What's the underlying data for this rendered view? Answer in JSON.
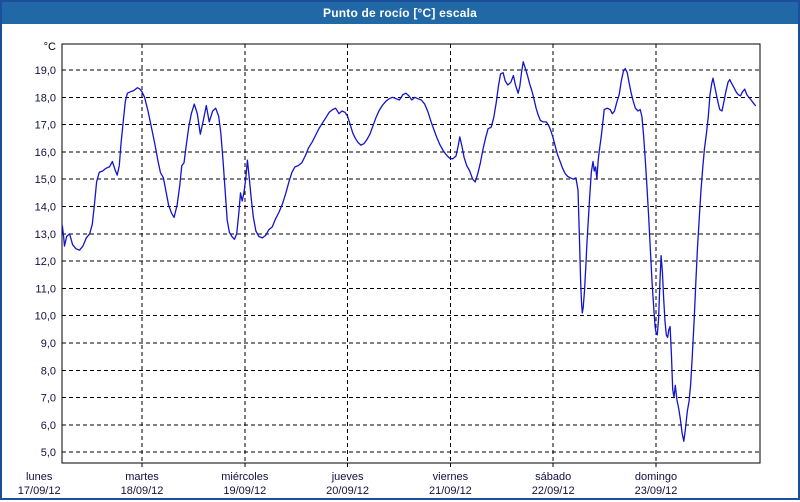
{
  "window": {
    "title": "Punto de rocío [°C] escala"
  },
  "colors": {
    "titlebar_bg": "#2069a6",
    "frame": "#1b4e9b",
    "series_line": "#1414cc",
    "grid": "#000000",
    "axis_text": "#10103f"
  },
  "axes": {
    "y_unit": "°C",
    "y_tick_labels": [
      "19,0",
      "18,0",
      "17,0",
      "16,0",
      "15,0",
      "14,0",
      "13,0",
      "12,0",
      "11,0",
      "10,0",
      "9,0",
      "8,0",
      "7,0",
      "6,0",
      "5,0"
    ],
    "x_days": [
      {
        "name": "lunes",
        "date": "17/09/12"
      },
      {
        "name": "martes",
        "date": "18/09/12"
      },
      {
        "name": "miércoles",
        "date": "19/09/12"
      },
      {
        "name": "jueves",
        "date": "20/09/12"
      },
      {
        "name": "viernes",
        "date": "21/09/12"
      },
      {
        "name": "sábado",
        "date": "22/09/12"
      },
      {
        "name": "domingo",
        "date": "23/09/12"
      }
    ]
  },
  "chart_data": {
    "type": "line",
    "title": "Punto de rocío [°C] escala",
    "xlabel": "",
    "ylabel": "°C",
    "ylim": [
      4.6,
      19.95
    ],
    "y_ticks": [
      19,
      18,
      17,
      16,
      15,
      14,
      13,
      12,
      11,
      10,
      9,
      8,
      7,
      6,
      5
    ],
    "grid": true,
    "legend": false,
    "x_unit": "hours since Monday 17/09/12 00:00",
    "x_day_labels": [
      "lunes 17/09/12",
      "martes 18/09/12",
      "miércoles 19/09/12",
      "jueves 20/09/12",
      "viernes 21/09/12",
      "sábado 22/09/12",
      "domingo 23/09/12"
    ],
    "series": [
      {
        "name": "Punto de rocío",
        "unit": "°C",
        "points": [
          [
            5.4,
            13.3
          ],
          [
            5.7,
            12.9
          ],
          [
            5.9,
            12.55
          ],
          [
            6.4,
            12.9
          ],
          [
            7.1,
            13.0
          ],
          [
            7.8,
            12.6
          ],
          [
            8.6,
            12.45
          ],
          [
            9.4,
            12.4
          ],
          [
            10.2,
            12.55
          ],
          [
            11.0,
            12.85
          ],
          [
            11.8,
            13.0
          ],
          [
            12.4,
            13.35
          ],
          [
            12.9,
            14.1
          ],
          [
            13.4,
            14.9
          ],
          [
            14.0,
            15.25
          ],
          [
            14.8,
            15.3
          ],
          [
            15.6,
            15.4
          ],
          [
            16.4,
            15.45
          ],
          [
            17.1,
            15.65
          ],
          [
            17.7,
            15.35
          ],
          [
            18.2,
            15.15
          ],
          [
            18.7,
            15.5
          ],
          [
            19.1,
            16.3
          ],
          [
            19.6,
            17.1
          ],
          [
            20.1,
            17.85
          ],
          [
            20.6,
            18.15
          ],
          [
            21.3,
            18.2
          ],
          [
            22.1,
            18.25
          ],
          [
            22.9,
            18.35
          ],
          [
            23.5,
            18.3
          ],
          [
            24.0,
            18.2
          ],
          [
            24.6,
            18.0
          ],
          [
            25.4,
            17.5
          ],
          [
            26.2,
            16.9
          ],
          [
            27.0,
            16.3
          ],
          [
            27.7,
            15.7
          ],
          [
            28.3,
            15.25
          ],
          [
            29.0,
            15.05
          ],
          [
            29.6,
            14.55
          ],
          [
            30.2,
            14.05
          ],
          [
            30.9,
            13.75
          ],
          [
            31.5,
            13.6
          ],
          [
            32.2,
            14.05
          ],
          [
            32.8,
            14.75
          ],
          [
            33.3,
            15.5
          ],
          [
            33.8,
            15.6
          ],
          [
            34.3,
            16.2
          ],
          [
            34.9,
            16.9
          ],
          [
            35.5,
            17.4
          ],
          [
            36.2,
            17.75
          ],
          [
            36.9,
            17.4
          ],
          [
            37.6,
            16.65
          ],
          [
            38.3,
            17.15
          ],
          [
            39.0,
            17.7
          ],
          [
            39.7,
            17.1
          ],
          [
            40.5,
            17.5
          ],
          [
            41.2,
            17.6
          ],
          [
            41.9,
            17.3
          ],
          [
            42.4,
            16.7
          ],
          [
            42.9,
            15.7
          ],
          [
            43.4,
            14.6
          ],
          [
            43.9,
            13.5
          ],
          [
            44.4,
            13.05
          ],
          [
            45.0,
            12.9
          ],
          [
            45.6,
            12.8
          ],
          [
            46.1,
            13.0
          ],
          [
            46.6,
            13.75
          ],
          [
            47.0,
            14.5
          ],
          [
            47.4,
            14.2
          ],
          [
            47.8,
            14.5
          ],
          [
            48.2,
            15.0
          ],
          [
            48.6,
            15.7
          ],
          [
            49.0,
            15.1
          ],
          [
            49.5,
            14.3
          ],
          [
            50.0,
            13.6
          ],
          [
            50.6,
            13.1
          ],
          [
            51.3,
            12.9
          ],
          [
            52.1,
            12.85
          ],
          [
            52.9,
            12.95
          ],
          [
            53.6,
            13.15
          ],
          [
            54.4,
            13.25
          ],
          [
            55.2,
            13.55
          ],
          [
            56.0,
            13.8
          ],
          [
            56.8,
            14.1
          ],
          [
            57.6,
            14.5
          ],
          [
            58.3,
            14.9
          ],
          [
            59.0,
            15.25
          ],
          [
            59.7,
            15.45
          ],
          [
            60.5,
            15.5
          ],
          [
            61.3,
            15.6
          ],
          [
            62.1,
            15.85
          ],
          [
            62.9,
            16.15
          ],
          [
            63.7,
            16.35
          ],
          [
            64.5,
            16.6
          ],
          [
            65.3,
            16.85
          ],
          [
            66.1,
            17.05
          ],
          [
            66.9,
            17.25
          ],
          [
            67.7,
            17.45
          ],
          [
            68.5,
            17.55
          ],
          [
            69.2,
            17.6
          ],
          [
            70.0,
            17.4
          ],
          [
            70.7,
            17.5
          ],
          [
            71.4,
            17.45
          ],
          [
            72.0,
            17.3
          ],
          [
            72.6,
            17.0
          ],
          [
            73.2,
            16.7
          ],
          [
            73.8,
            16.5
          ],
          [
            74.4,
            16.35
          ],
          [
            75.1,
            16.25
          ],
          [
            75.8,
            16.3
          ],
          [
            76.5,
            16.45
          ],
          [
            77.2,
            16.65
          ],
          [
            77.9,
            16.95
          ],
          [
            78.6,
            17.25
          ],
          [
            79.3,
            17.5
          ],
          [
            80.1,
            17.7
          ],
          [
            80.9,
            17.85
          ],
          [
            81.7,
            17.95
          ],
          [
            82.5,
            18.0
          ],
          [
            83.3,
            17.95
          ],
          [
            84.1,
            17.9
          ],
          [
            84.9,
            18.1
          ],
          [
            85.6,
            18.15
          ],
          [
            86.3,
            18.05
          ],
          [
            87.0,
            17.9
          ],
          [
            87.7,
            18.0
          ],
          [
            88.4,
            17.95
          ],
          [
            89.2,
            17.9
          ],
          [
            90.0,
            17.75
          ],
          [
            90.8,
            17.45
          ],
          [
            91.5,
            17.1
          ],
          [
            92.2,
            16.8
          ],
          [
            92.9,
            16.5
          ],
          [
            93.6,
            16.25
          ],
          [
            94.3,
            16.05
          ],
          [
            95.0,
            15.9
          ],
          [
            95.6,
            15.8
          ],
          [
            96.0,
            15.75
          ],
          [
            96.6,
            15.75
          ],
          [
            97.3,
            15.85
          ],
          [
            97.8,
            16.2
          ],
          [
            98.2,
            16.55
          ],
          [
            98.7,
            16.2
          ],
          [
            99.2,
            15.8
          ],
          [
            99.8,
            15.5
          ],
          [
            100.5,
            15.3
          ],
          [
            101.2,
            15.0
          ],
          [
            101.8,
            14.9
          ],
          [
            102.4,
            15.2
          ],
          [
            103.0,
            15.6
          ],
          [
            103.6,
            16.1
          ],
          [
            104.2,
            16.5
          ],
          [
            104.8,
            16.85
          ],
          [
            105.5,
            16.9
          ],
          [
            106.1,
            17.25
          ],
          [
            106.7,
            17.8
          ],
          [
            107.2,
            18.4
          ],
          [
            107.7,
            18.85
          ],
          [
            108.3,
            18.9
          ],
          [
            108.8,
            18.6
          ],
          [
            109.4,
            18.45
          ],
          [
            110.1,
            18.55
          ],
          [
            110.7,
            18.8
          ],
          [
            111.2,
            18.45
          ],
          [
            111.8,
            18.15
          ],
          [
            112.2,
            18.4
          ],
          [
            112.6,
            18.9
          ],
          [
            113.0,
            19.3
          ],
          [
            113.5,
            19.05
          ],
          [
            114.0,
            18.8
          ],
          [
            114.5,
            18.5
          ],
          [
            115.0,
            18.25
          ],
          [
            115.5,
            17.95
          ],
          [
            116.0,
            17.6
          ],
          [
            116.5,
            17.35
          ],
          [
            117.0,
            17.15
          ],
          [
            117.7,
            17.1
          ],
          [
            118.4,
            17.1
          ],
          [
            119.0,
            16.95
          ],
          [
            119.5,
            16.75
          ],
          [
            120.0,
            16.5
          ],
          [
            120.5,
            16.2
          ],
          [
            121.0,
            15.9
          ],
          [
            121.6,
            15.65
          ],
          [
            122.2,
            15.4
          ],
          [
            122.8,
            15.2
          ],
          [
            123.4,
            15.1
          ],
          [
            124.0,
            15.05
          ],
          [
            124.7,
            15.0
          ],
          [
            125.3,
            15.05
          ],
          [
            125.8,
            14.6
          ],
          [
            126.0,
            13.5
          ],
          [
            126.2,
            12.4
          ],
          [
            126.4,
            11.3
          ],
          [
            126.6,
            10.5
          ],
          [
            126.8,
            10.1
          ],
          [
            127.0,
            10.3
          ],
          [
            127.3,
            10.9
          ],
          [
            127.6,
            11.8
          ],
          [
            127.9,
            12.7
          ],
          [
            128.2,
            13.5
          ],
          [
            128.5,
            14.3
          ],
          [
            128.9,
            15.25
          ],
          [
            129.3,
            15.65
          ],
          [
            129.6,
            15.3
          ],
          [
            129.9,
            15.45
          ],
          [
            130.2,
            15.0
          ],
          [
            130.5,
            15.7
          ],
          [
            130.8,
            16.1
          ],
          [
            131.2,
            16.55
          ],
          [
            131.6,
            17.1
          ],
          [
            131.9,
            17.55
          ],
          [
            132.6,
            17.6
          ],
          [
            133.3,
            17.55
          ],
          [
            133.8,
            17.4
          ],
          [
            134.3,
            17.5
          ],
          [
            134.9,
            17.85
          ],
          [
            135.4,
            18.1
          ],
          [
            135.9,
            18.6
          ],
          [
            136.4,
            18.95
          ],
          [
            136.8,
            19.05
          ],
          [
            137.3,
            18.9
          ],
          [
            137.7,
            18.55
          ],
          [
            138.2,
            18.15
          ],
          [
            138.7,
            17.85
          ],
          [
            139.2,
            17.6
          ],
          [
            139.8,
            17.5
          ],
          [
            140.3,
            17.55
          ],
          [
            140.7,
            17.3
          ],
          [
            141.1,
            16.6
          ],
          [
            141.5,
            15.7
          ],
          [
            141.9,
            14.7
          ],
          [
            142.3,
            13.6
          ],
          [
            142.7,
            12.4
          ],
          [
            143.1,
            11.2
          ],
          [
            143.5,
            10.2
          ],
          [
            143.8,
            9.6
          ],
          [
            144.0,
            9.4
          ],
          [
            144.3,
            9.3
          ],
          [
            144.6,
            9.9
          ],
          [
            144.9,
            11.2
          ],
          [
            145.2,
            12.2
          ],
          [
            145.5,
            11.6
          ],
          [
            145.8,
            10.6
          ],
          [
            146.1,
            9.8
          ],
          [
            146.4,
            9.3
          ],
          [
            146.7,
            9.2
          ],
          [
            147.0,
            9.5
          ],
          [
            147.3,
            9.6
          ],
          [
            147.6,
            8.6
          ],
          [
            147.9,
            7.3
          ],
          [
            148.2,
            7.0
          ],
          [
            148.5,
            7.45
          ],
          [
            148.9,
            6.9
          ],
          [
            149.3,
            6.6
          ],
          [
            149.7,
            6.2
          ],
          [
            150.1,
            5.7
          ],
          [
            150.5,
            5.4
          ],
          [
            150.9,
            5.9
          ],
          [
            151.3,
            6.5
          ],
          [
            151.7,
            6.85
          ],
          [
            152.1,
            7.5
          ],
          [
            152.5,
            8.6
          ],
          [
            152.9,
            9.8
          ],
          [
            153.3,
            11.2
          ],
          [
            153.7,
            12.5
          ],
          [
            154.1,
            13.6
          ],
          [
            154.5,
            14.6
          ],
          [
            154.9,
            15.4
          ],
          [
            155.3,
            16.1
          ],
          [
            155.8,
            16.7
          ],
          [
            156.2,
            17.3
          ],
          [
            156.6,
            18.1
          ],
          [
            157.0,
            18.5
          ],
          [
            157.3,
            18.7
          ],
          [
            157.7,
            18.4
          ],
          [
            158.1,
            18.1
          ],
          [
            158.5,
            17.8
          ],
          [
            158.9,
            17.55
          ],
          [
            159.4,
            17.5
          ],
          [
            159.8,
            17.8
          ],
          [
            160.3,
            18.2
          ],
          [
            160.8,
            18.55
          ],
          [
            161.2,
            18.65
          ],
          [
            161.7,
            18.5
          ],
          [
            162.2,
            18.35
          ],
          [
            162.7,
            18.2
          ],
          [
            163.2,
            18.1
          ],
          [
            163.7,
            18.05
          ],
          [
            164.2,
            18.2
          ],
          [
            164.7,
            18.3
          ],
          [
            165.2,
            18.1
          ],
          [
            165.7,
            18.0
          ],
          [
            166.2,
            17.9
          ],
          [
            166.7,
            17.8
          ],
          [
            167.2,
            17.7
          ]
        ]
      }
    ]
  }
}
